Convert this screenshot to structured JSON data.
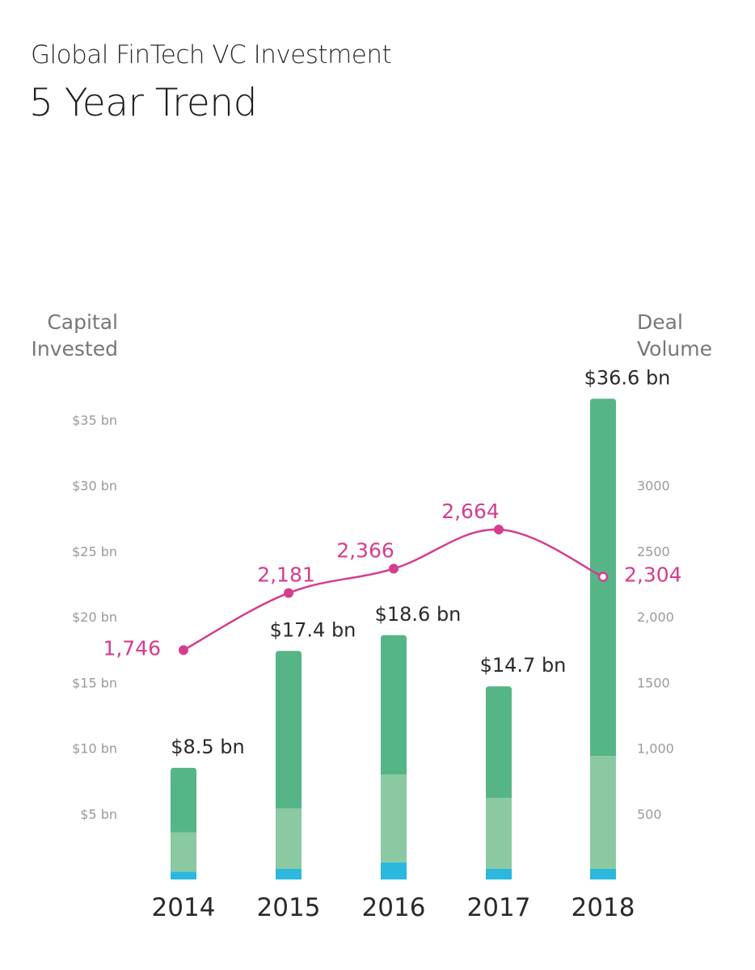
{
  "title": "Global FinTech VC Investment",
  "subtitle": "5 Year Trend",
  "left_axis_title": [
    "Capital",
    "Invested"
  ],
  "right_axis_title": [
    "Deal",
    "Volume"
  ],
  "colors": {
    "bar_top": "#55b586",
    "bar_mid": "#8ac9a1",
    "bar_bottom": "#2cb8de",
    "line": "#d63c8f",
    "left_ticks": "#9a9a9a",
    "right_ticks": "#9a9a9a"
  },
  "chart_data": {
    "type": "bar",
    "categories": [
      "2014",
      "2015",
      "2016",
      "2017",
      "2018"
    ],
    "series": [
      {
        "type": "bar",
        "axis": "left",
        "totals": [
          8.5,
          17.4,
          18.6,
          14.7,
          36.6
        ],
        "value_labels": [
          "$8.5 bn",
          "$17.4 bn",
          "$18.6 bn",
          "$14.7 bn",
          "$36.6 bn"
        ],
        "segments": [
          {
            "values": [
              0.6,
              0.8,
              1.3,
              0.8,
              0.8
            ],
            "color": "#2cb8de"
          },
          {
            "values": [
              3.0,
              4.6,
              6.7,
              5.4,
              8.6
            ],
            "color": "#8ac9a1"
          },
          {
            "values": [
              4.9,
              12.0,
              10.6,
              8.5,
              27.2
            ],
            "color": "#55b586"
          }
        ]
      },
      {
        "type": "line",
        "axis": "right",
        "values": [
          1746,
          2181,
          2366,
          2664,
          2304
        ],
        "value_labels": [
          "1,746",
          "2,181",
          "2,366",
          "2,664",
          "2,304"
        ]
      }
    ],
    "left_axis": {
      "ylim": [
        0,
        35
      ],
      "ticks": [
        5,
        10,
        15,
        20,
        25,
        30,
        35
      ],
      "tick_labels": [
        "$5 bn",
        "$10 bn",
        "$15 bn",
        "$20 bn",
        "$25 bn",
        "$30 bn",
        "$35 bn"
      ]
    },
    "right_axis": {
      "ylim": [
        0,
        3500
      ],
      "ticks": [
        500,
        1000,
        1500,
        2000,
        2500,
        3000
      ],
      "tick_labels": [
        "500",
        "1,000",
        "1500",
        "2,000",
        "2500",
        "3000"
      ]
    },
    "grid": false
  }
}
